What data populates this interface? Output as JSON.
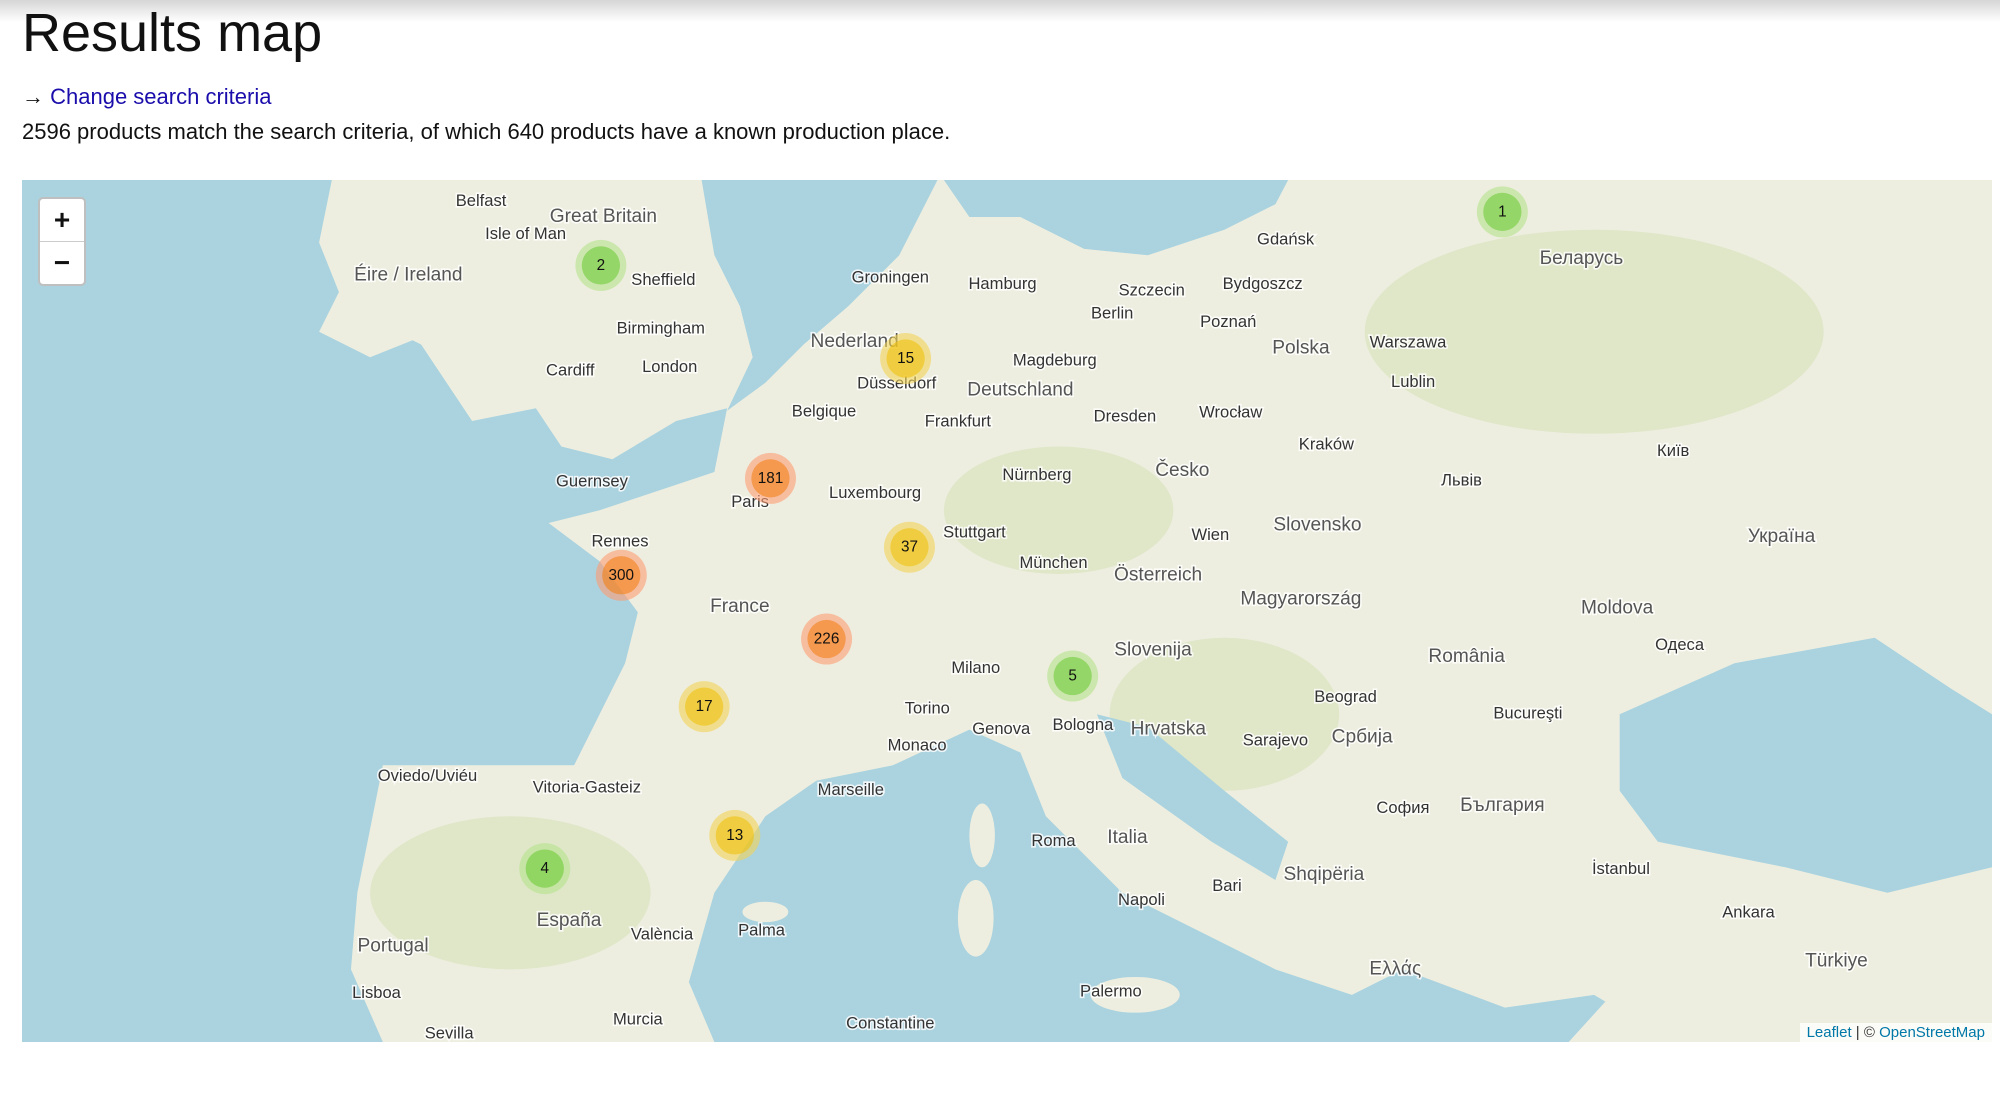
{
  "header": {
    "title": "Results map"
  },
  "nav": {
    "arrow": "→",
    "link": "Change search criteria"
  },
  "summary": "2596 products match the search criteria, of which 640 products have a known production place.",
  "map": {
    "zoom_in": "+",
    "zoom_out": "−",
    "clusters": [
      1,
      2,
      15,
      181,
      37,
      300,
      226,
      5,
      17,
      13,
      4
    ],
    "labels": [
      "Great Britain",
      "Éire / Ireland",
      "Belfast",
      "Isle of Man",
      "Sheffield",
      "Birmingham",
      "London",
      "Cardiff",
      "Nederland",
      "Groningen",
      "Hamburg",
      "Berlin",
      "Deutschland",
      "Magdeburg",
      "Frankfurt",
      "Düsseldorf",
      "Belgique",
      "Paris",
      "Luxembourg",
      "Stuttgart",
      "München",
      "Nürnberg",
      "Dresden",
      "Česko",
      "Österreich",
      "Wien",
      "Polska",
      "Warszawa",
      "Kraków",
      "Wrocław",
      "Poznań",
      "Gdańsk",
      "Szczecin",
      "Bydgoszcz",
      "Rennes",
      "France",
      "Guernsey",
      "Milano",
      "Torino",
      "Genova",
      "Bologna",
      "Italia",
      "Roma",
      "Napoli",
      "Palermo",
      "Slovenija",
      "Hrvatska",
      "Magyarország",
      "Slovensko",
      "România",
      "Bucureşti",
      "Beograd",
      "Србија",
      "България",
      "София",
      "Sarajevo",
      "Shqipëria",
      "Ελλάς",
      "Marseille",
      "Monaco",
      "España",
      "Portugal",
      "Lisboa",
      "Sevilla",
      "València",
      "Palma",
      "Murcia",
      "Vitoria-Gasteiz",
      "Oviedo/Uviéu",
      "Україна",
      "Київ",
      "Беларусь",
      "Moldova",
      "Одеса",
      "Türkiye",
      "İstanbul",
      "Ankara",
      "Bari",
      "Lublin",
      "Львів",
      "Constantine"
    ],
    "attribution": {
      "leaflet": "Leaflet",
      "separator": "| ©",
      "osm": "OpenStreetMap"
    }
  }
}
